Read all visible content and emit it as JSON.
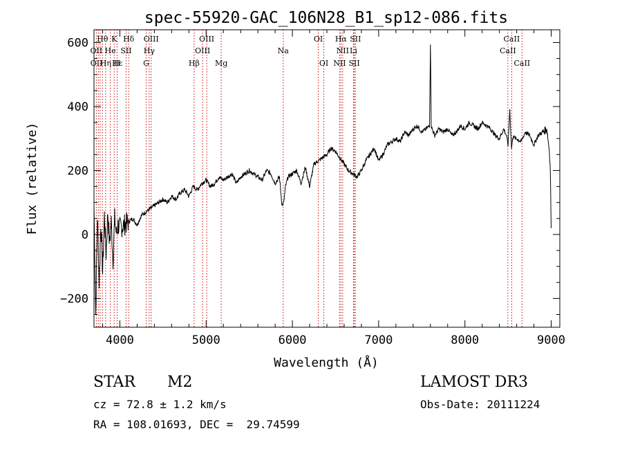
{
  "chart_data": {
    "type": "line",
    "title": "spec-55920-GAC_106N28_B1_sp12-086.fits",
    "xlabel": "Wavelength (Å)",
    "ylabel": "Flux (relative)",
    "xlim": [
      3700,
      9100
    ],
    "ylim": [
      -290,
      640
    ],
    "x_ticks": [
      4000,
      5000,
      6000,
      7000,
      8000,
      9000
    ],
    "y_ticks": [
      -200,
      0,
      200,
      400,
      600
    ],
    "line_color": "#000000",
    "marker_color": "#cc0000",
    "series": [
      {
        "name": "flux",
        "x": [
          3700,
          3720,
          3740,
          3760,
          3780,
          3800,
          3820,
          3840,
          3860,
          3880,
          3900,
          3920,
          3940,
          3960,
          3980,
          4000,
          4050,
          4100,
          4150,
          4200,
          4250,
          4300,
          4350,
          4400,
          4450,
          4500,
          4550,
          4600,
          4650,
          4700,
          4750,
          4800,
          4850,
          4900,
          4950,
          5000,
          5050,
          5100,
          5150,
          5200,
          5250,
          5300,
          5350,
          5400,
          5450,
          5500,
          5550,
          5600,
          5650,
          5700,
          5750,
          5800,
          5850,
          5880,
          5900,
          5920,
          5950,
          6000,
          6050,
          6100,
          6150,
          6200,
          6250,
          6300,
          6350,
          6400,
          6450,
          6500,
          6550,
          6600,
          6650,
          6700,
          6750,
          6800,
          6850,
          6900,
          6950,
          7000,
          7050,
          7100,
          7150,
          7200,
          7250,
          7300,
          7350,
          7400,
          7450,
          7500,
          7550,
          7590,
          7600,
          7610,
          7620,
          7650,
          7700,
          7750,
          7800,
          7850,
          7900,
          7950,
          8000,
          8050,
          8100,
          8150,
          8200,
          8250,
          8300,
          8350,
          8400,
          8450,
          8480,
          8500,
          8520,
          8540,
          8560,
          8580,
          8600,
          8650,
          8700,
          8750,
          8800,
          8850,
          8900,
          8950,
          8980,
          8990,
          9000
        ],
        "y": [
          90,
          -250,
          60,
          -150,
          40,
          -120,
          60,
          -60,
          70,
          -30,
          40,
          -80,
          50,
          0,
          30,
          20,
          30,
          40,
          50,
          30,
          60,
          70,
          80,
          90,
          100,
          110,
          100,
          120,
          110,
          130,
          140,
          120,
          150,
          140,
          160,
          170,
          150,
          160,
          180,
          170,
          180,
          190,
          160,
          180,
          190,
          200,
          190,
          180,
          170,
          200,
          190,
          160,
          180,
          90,
          100,
          150,
          180,
          190,
          200,
          160,
          210,
          150,
          220,
          230,
          240,
          250,
          270,
          260,
          240,
          220,
          200,
          190,
          180,
          200,
          230,
          250,
          270,
          230,
          250,
          280,
          290,
          300,
          290,
          320,
          310,
          330,
          340,
          320,
          330,
          340,
          600,
          340,
          330,
          310,
          330,
          320,
          330,
          310,
          320,
          340,
          330,
          350,
          340,
          330,
          350,
          340,
          330,
          310,
          300,
          330,
          310,
          280,
          390,
          270,
          310,
          300,
          300,
          290,
          320,
          310,
          280,
          310,
          320,
          330,
          260,
          200,
          20
        ]
      }
    ],
    "line_markers": [
      {
        "label": "Hθ",
        "wl": 3798,
        "row": 0
      },
      {
        "label": "K",
        "wl": 3934,
        "row": 0
      },
      {
        "label": "Hδ",
        "wl": 4102,
        "row": 0
      },
      {
        "label": "OIII",
        "wl": 4363,
        "row": 0
      },
      {
        "label": "OIII",
        "wl": 5007,
        "row": 0
      },
      {
        "label": "OI",
        "wl": 6300,
        "row": 0
      },
      {
        "label": "Hα",
        "wl": 6563,
        "row": 0
      },
      {
        "label": "SII",
        "wl": 6731,
        "row": 0
      },
      {
        "label": "CaII",
        "wl": 8542,
        "row": 0
      },
      {
        "label": "OII",
        "wl": 3727,
        "row": 1
      },
      {
        "label": "He",
        "wl": 3889,
        "row": 1
      },
      {
        "label": "SII",
        "wl": 4072,
        "row": 1
      },
      {
        "label": "Hγ",
        "wl": 4340,
        "row": 1
      },
      {
        "label": "OIII",
        "wl": 4959,
        "row": 1
      },
      {
        "label": "Na",
        "wl": 5893,
        "row": 1
      },
      {
        "label": "NII",
        "wl": 6583,
        "row": 1
      },
      {
        "label": "Li",
        "wl": 6708,
        "row": 1
      },
      {
        "label": "CaII",
        "wl": 8498,
        "row": 1
      },
      {
        "label": "OII",
        "wl": 3729,
        "row": 2
      },
      {
        "label": "Hε",
        "wl": 3970,
        "row": 2
      },
      {
        "label": "Hη",
        "wl": 3835,
        "row": 2
      },
      {
        "label": "H",
        "wl": 3968,
        "row": 2
      },
      {
        "label": "G",
        "wl": 4305,
        "row": 2
      },
      {
        "label": "Hβ",
        "wl": 4861,
        "row": 2
      },
      {
        "label": "Mg",
        "wl": 5175,
        "row": 2
      },
      {
        "label": "OI",
        "wl": 6364,
        "row": 2
      },
      {
        "label": "NII",
        "wl": 6548,
        "row": 2
      },
      {
        "label": "SII",
        "wl": 6717,
        "row": 2
      },
      {
        "label": "CaII",
        "wl": 8662,
        "row": 2
      }
    ],
    "dotted_lines_wl": [
      3727,
      3750,
      3771,
      3798,
      3835,
      3889,
      3934,
      3968,
      4072,
      4102,
      4305,
      4340,
      4363,
      4861,
      4959,
      5007,
      5175,
      5893,
      6300,
      6364,
      6548,
      6563,
      6583,
      6708,
      6717,
      6731,
      8498,
      8542,
      8662
    ]
  },
  "info": {
    "object_class": "STAR",
    "subclass": "M2",
    "survey": "LAMOST DR3",
    "redshift": "cz = 72.8 ± 1.2 km/s",
    "obs_date": "Obs-Date: 20111224",
    "coords": "RA = 108.01693, DEC =  29.74599"
  }
}
